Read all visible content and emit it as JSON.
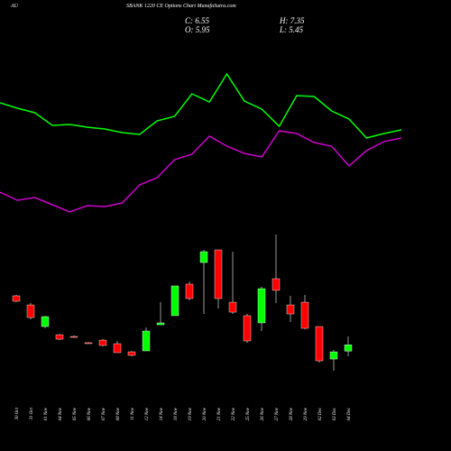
{
  "chart_data": {
    "type": "candlestick",
    "symbol": "AU",
    "title": "SBANK 1220 CE Options Chart MunafaSutra.com",
    "close_label": "C: 6.55",
    "high_label": "H: 7.35",
    "open_label": "O: 5.95",
    "low_label": "L: 5.45",
    "categories": [
      "30 Oct",
      "31 Oct",
      "01 Nov",
      "04 Nov",
      "05 Nov",
      "06 Nov",
      "07 Nov",
      "08 Nov",
      "11 Nov",
      "12 Nov",
      "14 Nov",
      "18 Nov",
      "19 Nov",
      "20 Nov",
      "21 Nov",
      "22 Nov",
      "25 Nov",
      "26 Nov",
      "27 Nov",
      "28 Nov",
      "29 Nov",
      "02 Dec",
      "03 Dec",
      "04 Dec"
    ],
    "open": [
      11.24,
      10.37,
      8.3,
      7.52,
      7.35,
      6.75,
      7.0,
      6.66,
      5.88,
      5.97,
      8.47,
      9.34,
      12.36,
      14.43,
      15.64,
      10.63,
      9.34,
      8.65,
      12.88,
      10.37,
      10.63,
      8.3,
      5.19,
      5.95
    ],
    "high": [
      11.32,
      10.55,
      9.34,
      7.6,
      7.45,
      6.8,
      7.09,
      6.92,
      5.97,
      8.21,
      10.63,
      12.19,
      12.62,
      15.64,
      15.64,
      15.47,
      9.51,
      12.1,
      17.11,
      11.24,
      11.32,
      8.3,
      6.05,
      7.35
    ],
    "low": [
      10.63,
      8.99,
      8.13,
      7.0,
      7.25,
      6.65,
      6.4,
      5.8,
      5.45,
      5.97,
      8.47,
      9.34,
      10.81,
      9.51,
      10.03,
      9.51,
      6.75,
      7.87,
      10.55,
      8.73,
      8.04,
      4.85,
      4.07,
      5.45
    ],
    "close": [
      10.72,
      9.16,
      9.25,
      7.09,
      7.3,
      6.7,
      6.49,
      5.8,
      5.54,
      7.87,
      8.65,
      12.19,
      10.98,
      15.47,
      10.98,
      9.68,
      6.92,
      11.93,
      11.76,
      9.51,
      8.13,
      5.02,
      5.88,
      6.55
    ],
    "up_color": "#00ff00",
    "down_color": "#ff0000",
    "ylim": [
      3,
      18
    ],
    "y2lim": [
      0,
      100
    ],
    "series": [
      {
        "color": "#00ff00",
        "axis": "y2",
        "values": [
          73,
          70,
          67.5,
          60.5,
          61,
          59.5,
          58.5,
          56.5,
          55.5,
          63,
          65.5,
          78,
          73.5,
          89,
          74,
          69.5,
          60,
          77,
          76.5,
          68.5,
          64,
          53.5,
          56,
          58
        ]
      },
      {
        "color": "#cc00cc",
        "axis": "y2",
        "values": [
          23.5,
          19,
          20.5,
          16.5,
          12.5,
          16,
          15.5,
          17.5,
          27.5,
          31.5,
          41.5,
          44.5,
          54.5,
          49,
          45,
          43,
          57.5,
          56,
          51,
          49,
          38,
          46.5,
          51.5,
          53.5
        ]
      }
    ]
  }
}
